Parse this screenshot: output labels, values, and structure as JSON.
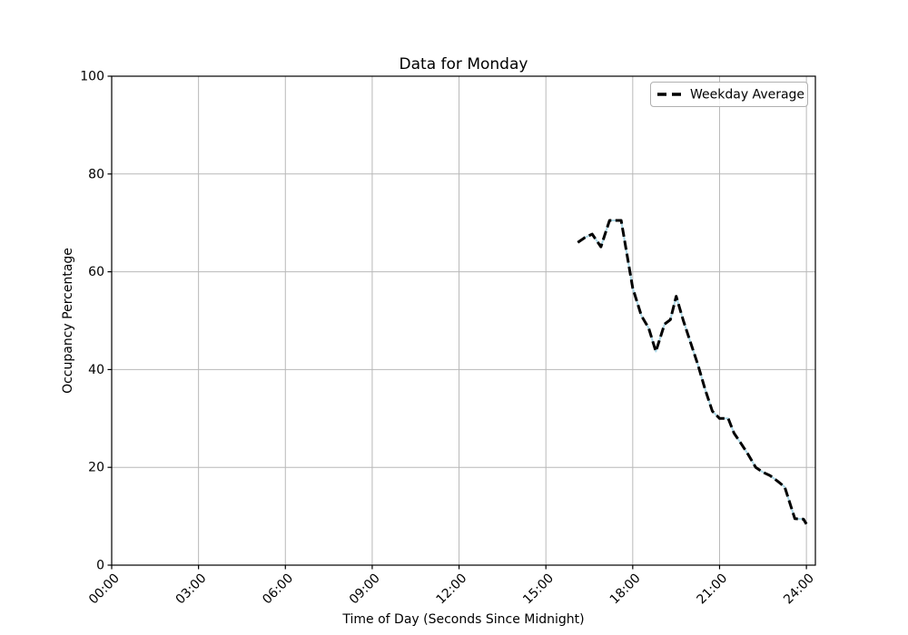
{
  "chart_data": {
    "type": "line",
    "title": "Data for Monday",
    "xlabel": "Time of Day (Seconds Since Midnight)",
    "ylabel": "Occupancy Percentage",
    "x_ticks": [
      {
        "label": "00:00",
        "hour": 0
      },
      {
        "label": "03:00",
        "hour": 3
      },
      {
        "label": "06:00",
        "hour": 6
      },
      {
        "label": "09:00",
        "hour": 9
      },
      {
        "label": "12:00",
        "hour": 12
      },
      {
        "label": "15:00",
        "hour": 15
      },
      {
        "label": "18:00",
        "hour": 18
      },
      {
        "label": "21:00",
        "hour": 21
      },
      {
        "label": "24:00",
        "hour": 24
      }
    ],
    "y_ticks": [
      0,
      20,
      40,
      60,
      80,
      100
    ],
    "xlim_hours": [
      0,
      24.31
    ],
    "ylim": [
      0,
      100
    ],
    "grid": true,
    "background_color": "#ffffff",
    "grid_color": "#b8b8b8",
    "spine_color": "#000000",
    "legend": {
      "position": "top-right",
      "entries": [
        {
          "label": "Weekday Average",
          "color": "#000000",
          "dash": true
        }
      ]
    },
    "series": [
      {
        "id": "solid-underlay",
        "color": "#add8e6",
        "style": "solid",
        "width": 2,
        "x_hours": [
          16.1,
          16.35,
          16.6,
          16.9,
          17.2,
          17.6,
          18.0,
          18.3,
          18.55,
          18.8,
          19.1,
          19.3,
          19.5,
          19.75,
          20.0,
          20.25,
          20.5,
          20.75,
          21.0,
          21.3,
          21.5,
          21.75,
          22.0,
          22.25,
          22.5,
          22.75,
          23.0,
          23.25,
          23.6,
          23.9,
          24.0
        ],
        "values": [
          66,
          67,
          67.7,
          65.1,
          70.5,
          70.5,
          56.7,
          51,
          48.5,
          43.7,
          49.3,
          50.2,
          55,
          50,
          45.5,
          41,
          36,
          31.5,
          30,
          30,
          27,
          24.8,
          22.5,
          20,
          19,
          18.3,
          17.2,
          16,
          9.5,
          9.4,
          8.4
        ]
      },
      {
        "id": "weekday-average",
        "label": "Weekday Average",
        "color": "#000000",
        "style": "dashed",
        "width": 3,
        "x_hours": [
          16.1,
          16.35,
          16.6,
          16.9,
          17.2,
          17.6,
          18.0,
          18.3,
          18.55,
          18.8,
          19.1,
          19.3,
          19.5,
          19.75,
          20.0,
          20.25,
          20.5,
          20.75,
          21.0,
          21.3,
          21.5,
          21.75,
          22.0,
          22.25,
          22.5,
          22.75,
          23.0,
          23.25,
          23.6,
          23.9,
          24.0
        ],
        "values": [
          66,
          67,
          67.7,
          65.1,
          70.5,
          70.5,
          56.7,
          51,
          48.5,
          43.7,
          49.3,
          50.2,
          55,
          50,
          45.5,
          41,
          36,
          31.5,
          30,
          30,
          27,
          24.8,
          22.5,
          20,
          19,
          18.3,
          17.2,
          16,
          9.5,
          9.4,
          8.4
        ]
      }
    ]
  }
}
